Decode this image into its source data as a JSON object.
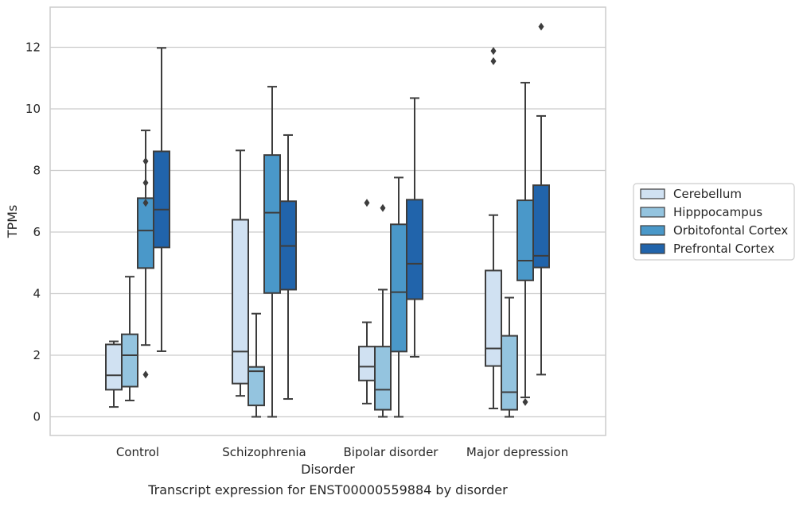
{
  "chart_data": {
    "type": "box",
    "caption": "Transcript expression for ENST00000559884 by disorder",
    "xlabel": "Disorder",
    "ylabel": "TPMs",
    "ylim": [
      -0.6,
      13.3
    ],
    "yticks": [
      "0",
      "2",
      "4",
      "6",
      "8",
      "10",
      "12"
    ],
    "categories": [
      "Control",
      "Schizophrenia",
      "Bipolar disorder",
      "Major depression"
    ],
    "grid": "horizontal",
    "legend_position": "right",
    "colors": {
      "Cerebellum": "#d0e1f2",
      "Hipppocampus": "#94c4df",
      "Orbitofontal Cortex": "#4a98c9",
      "Prefrontal Cortex": "#2164ab",
      "edge": "#3d3d3d",
      "grid": "#cccccc",
      "spine": "#cccccc"
    },
    "series": [
      {
        "name": "Cerebellum",
        "boxes": [
          {
            "min": 0.32,
            "q1": 0.88,
            "median": 1.35,
            "q3": 2.35,
            "max": 2.45,
            "outliers": []
          },
          {
            "min": 0.68,
            "q1": 1.08,
            "median": 2.12,
            "q3": 6.4,
            "max": 8.65,
            "outliers": []
          },
          {
            "min": 0.43,
            "q1": 1.18,
            "median": 1.63,
            "q3": 2.28,
            "max": 3.07,
            "outliers": [
              6.95
            ]
          },
          {
            "min": 0.27,
            "q1": 1.65,
            "median": 2.22,
            "q3": 4.75,
            "max": 6.55,
            "outliers": [
              11.55,
              11.88
            ]
          }
        ]
      },
      {
        "name": "Hipppocampus",
        "boxes": [
          {
            "min": 0.53,
            "q1": 0.98,
            "median": 2.0,
            "q3": 2.68,
            "max": 4.55,
            "outliers": []
          },
          {
            "min": 0.0,
            "q1": 0.37,
            "median": 1.48,
            "q3": 1.62,
            "max": 3.35,
            "outliers": []
          },
          {
            "min": 0.0,
            "q1": 0.23,
            "median": 0.88,
            "q3": 2.28,
            "max": 4.13,
            "outliers": [
              6.78
            ]
          },
          {
            "min": 0.0,
            "q1": 0.23,
            "median": 0.8,
            "q3": 2.63,
            "max": 3.87,
            "outliers": []
          }
        ]
      },
      {
        "name": "Orbitofontal Cortex",
        "boxes": [
          {
            "min": 2.33,
            "q1": 4.83,
            "median": 6.05,
            "q3": 7.1,
            "max": 9.3,
            "outliers": [
              8.3,
              7.6,
              6.95,
              1.37
            ]
          },
          {
            "min": 0.0,
            "q1": 4.02,
            "median": 6.63,
            "q3": 8.5,
            "max": 10.72,
            "outliers": []
          },
          {
            "min": 0.0,
            "q1": 2.12,
            "median": 4.05,
            "q3": 6.25,
            "max": 7.77,
            "outliers": []
          },
          {
            "min": 0.63,
            "q1": 4.43,
            "median": 5.07,
            "q3": 7.03,
            "max": 10.85,
            "outliers": [
              0.48
            ]
          }
        ]
      },
      {
        "name": "Prefrontal Cortex",
        "boxes": [
          {
            "min": 2.13,
            "q1": 5.5,
            "median": 6.73,
            "q3": 8.62,
            "max": 11.98,
            "outliers": []
          },
          {
            "min": 0.58,
            "q1": 4.13,
            "median": 5.55,
            "q3": 7.0,
            "max": 9.15,
            "outliers": []
          },
          {
            "min": 1.95,
            "q1": 3.82,
            "median": 4.97,
            "q3": 7.05,
            "max": 10.35,
            "outliers": []
          },
          {
            "min": 1.37,
            "q1": 4.85,
            "median": 5.23,
            "q3": 7.52,
            "max": 9.77,
            "outliers": [
              12.67
            ]
          }
        ]
      }
    ]
  }
}
